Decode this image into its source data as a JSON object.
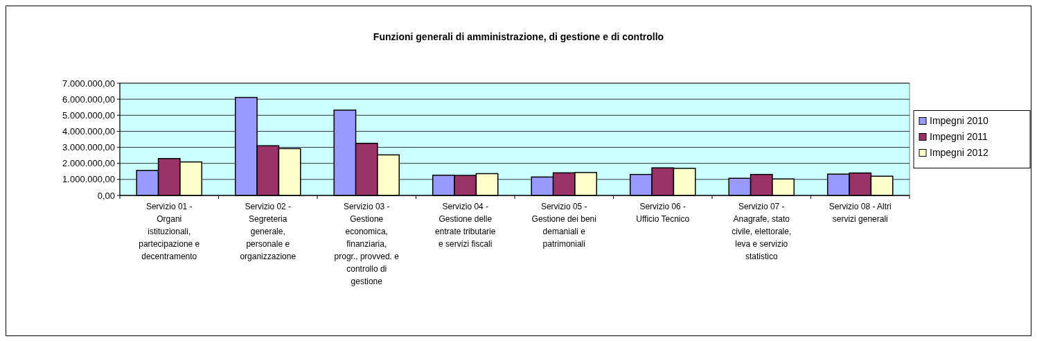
{
  "chart_data": {
    "type": "bar",
    "title": "Funzioni generali di amministrazione, di gestione e di controllo",
    "categories": [
      "Servizio 01 - Organi istituzionali, partecipazione e decentramento",
      "Servizio 02 - Segreteria generale, personale e organizzazione",
      "Servizio 03 - Gestione economica, finanziaria, progr., provved. e controllo di gestione",
      "Servizio 04 - Gestione delle entrate tributarie e servizi fiscali",
      "Servizio 05 - Gestione dei beni demaniali e patrimoniali",
      "Servizio 06 - Ufficio Tecnico",
      "Servizio 07 - Anagrafe, stato civile, elettorale, leva e servizio statistico",
      "Servizio 08 - Altri servizi generali"
    ],
    "series": [
      {
        "name": "Impegni 2010",
        "color": "#9999ff",
        "values": [
          1560000,
          6110000,
          5320000,
          1260000,
          1150000,
          1310000,
          1070000,
          1330000
        ]
      },
      {
        "name": "Impegni 2011",
        "color": "#993366",
        "values": [
          2300000,
          3100000,
          3250000,
          1250000,
          1410000,
          1720000,
          1310000,
          1400000
        ]
      },
      {
        "name": "Impegni 2012",
        "color": "#ffffcc",
        "values": [
          2090000,
          2920000,
          2530000,
          1360000,
          1430000,
          1690000,
          1030000,
          1200000
        ]
      }
    ],
    "ylim": [
      0,
      7000000
    ],
    "yticks": [
      {
        "value": 0,
        "label": "0,00"
      },
      {
        "value": 1000000,
        "label": "1.000.000,00"
      },
      {
        "value": 2000000,
        "label": "2.000.000,00"
      },
      {
        "value": 3000000,
        "label": "3.000.000,00"
      },
      {
        "value": 4000000,
        "label": "4.000.000,00"
      },
      {
        "value": 5000000,
        "label": "5.000.000,00"
      },
      {
        "value": 6000000,
        "label": "6.000.000,00"
      },
      {
        "value": 7000000,
        "label": "7.000.000,00"
      }
    ],
    "grid": "y",
    "legend": "right"
  }
}
